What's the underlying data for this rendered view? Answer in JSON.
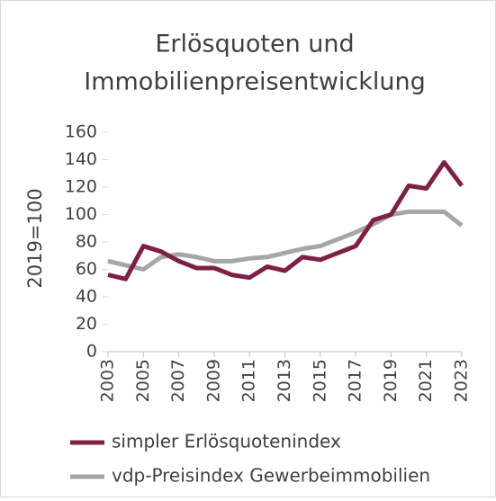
{
  "chart_data": {
    "type": "line",
    "title": [
      "Erlösquoten und",
      "Immobilienpreisentwicklung"
    ],
    "y_label": "2019=100",
    "x": [
      2003,
      2004,
      2005,
      2006,
      2007,
      2008,
      2009,
      2010,
      2011,
      2012,
      2013,
      2014,
      2015,
      2016,
      2017,
      2018,
      2019,
      2020,
      2021,
      2022,
      2023
    ],
    "xlim": [
      2003,
      2023
    ],
    "xticks": [
      2003,
      2005,
      2007,
      2009,
      2011,
      2013,
      2015,
      2017,
      2019,
      2021,
      2023
    ],
    "ylim": [
      0,
      160
    ],
    "yticks": [
      0,
      20,
      40,
      60,
      80,
      100,
      120,
      140,
      160
    ],
    "legend": "bottom",
    "series": [
      {
        "name": "simpler Erlösquotenindex",
        "color": "#7f1f47",
        "values": [
          56,
          53,
          77,
          73,
          66,
          61,
          61,
          56,
          54,
          62,
          59,
          69,
          67,
          72,
          77,
          96,
          100,
          121,
          119,
          138,
          121
        ]
      },
      {
        "name": "vdp-Preisindex Gewerbeimmobilien",
        "color": "#a6a6a6",
        "values": [
          66,
          63,
          60,
          69,
          71,
          69,
          66,
          66,
          68,
          69,
          72,
          75,
          77,
          82,
          87,
          93,
          100,
          102,
          102,
          102,
          92
        ]
      }
    ]
  }
}
